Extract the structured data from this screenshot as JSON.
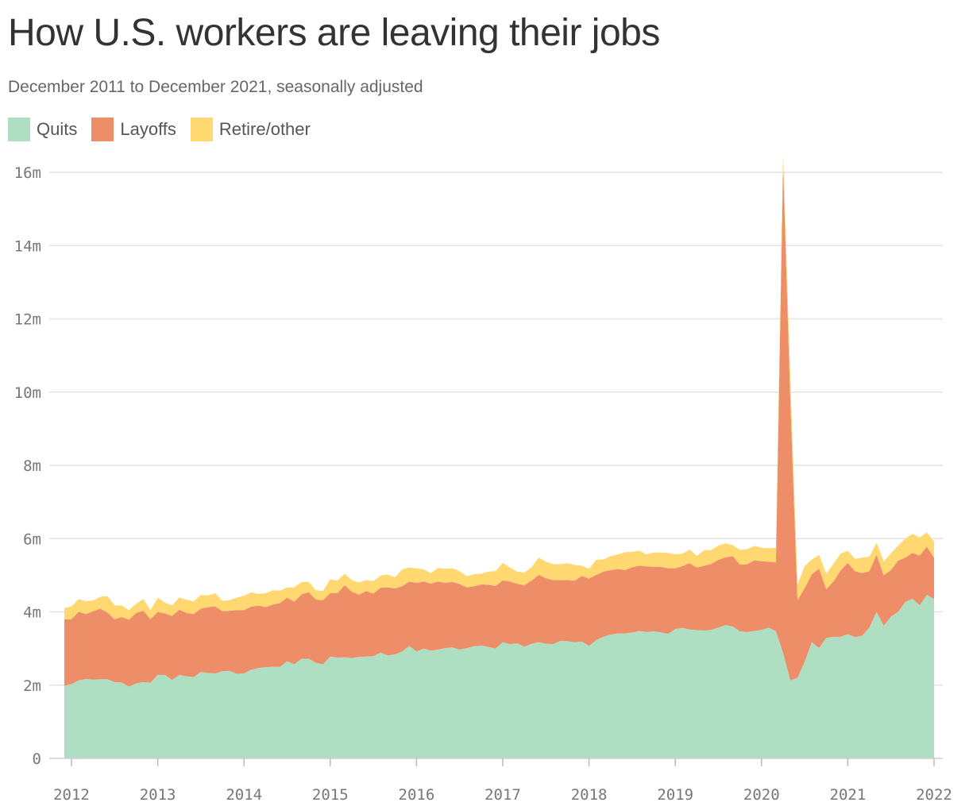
{
  "chart_data": {
    "type": "area",
    "stacked": true,
    "title": "How U.S. workers are leaving their jobs",
    "subtitle": "December 2011 to December 2021, seasonally adjusted",
    "xlabel": "",
    "ylabel": "",
    "x_start": "2011-12",
    "x_end": "2021-12",
    "x_ticks": [
      "2012",
      "2013",
      "2014",
      "2015",
      "2016",
      "2017",
      "2018",
      "2019",
      "2020",
      "2021",
      "2022"
    ],
    "ylim": [
      0,
      16000000
    ],
    "y_ticks": [
      {
        "value": 0,
        "label": "0"
      },
      {
        "value": 2000000,
        "label": "2m"
      },
      {
        "value": 4000000,
        "label": "4m"
      },
      {
        "value": 6000000,
        "label": "6m"
      },
      {
        "value": 8000000,
        "label": "8m"
      },
      {
        "value": 10000000,
        "label": "10m"
      },
      {
        "value": 12000000,
        "label": "12m"
      },
      {
        "value": 14000000,
        "label": "14m"
      },
      {
        "value": 16000000,
        "label": "16m"
      }
    ],
    "grid": true,
    "legend_position": "top-left",
    "series": [
      {
        "name": "Quits",
        "color": "#aedfc2",
        "values": [
          1.98,
          2.03,
          2.13,
          2.17,
          2.15,
          2.16,
          2.16,
          2.08,
          2.07,
          1.96,
          2.05,
          2.08,
          2.07,
          2.28,
          2.28,
          2.14,
          2.28,
          2.24,
          2.22,
          2.36,
          2.33,
          2.32,
          2.38,
          2.39,
          2.31,
          2.32,
          2.42,
          2.47,
          2.49,
          2.5,
          2.5,
          2.65,
          2.57,
          2.72,
          2.72,
          2.61,
          2.57,
          2.78,
          2.75,
          2.76,
          2.74,
          2.77,
          2.78,
          2.79,
          2.89,
          2.81,
          2.84,
          2.92,
          3.07,
          2.92,
          3.0,
          2.94,
          2.97,
          3.01,
          3.03,
          2.97,
          3.01,
          3.06,
          3.08,
          3.04,
          3.0,
          3.17,
          3.12,
          3.14,
          3.05,
          3.13,
          3.17,
          3.13,
          3.12,
          3.21,
          3.2,
          3.17,
          3.19,
          3.07,
          3.23,
          3.32,
          3.38,
          3.41,
          3.41,
          3.44,
          3.48,
          3.45,
          3.47,
          3.44,
          3.4,
          3.53,
          3.56,
          3.52,
          3.5,
          3.49,
          3.51,
          3.57,
          3.64,
          3.6,
          3.47,
          3.45,
          3.48,
          3.51,
          3.57,
          3.47,
          2.88,
          2.13,
          2.2,
          2.64,
          3.17,
          3.01,
          3.29,
          3.32,
          3.32,
          3.39,
          3.31,
          3.35,
          3.57,
          4.0,
          3.62,
          3.87,
          4.0,
          4.27,
          4.36,
          4.18,
          4.47,
          4.35
        ],
        "note": "millions"
      },
      {
        "name": "Layoffs",
        "color": "#ee8e68",
        "values": [
          1.82,
          1.77,
          1.87,
          1.77,
          1.87,
          1.93,
          1.82,
          1.72,
          1.79,
          1.83,
          1.92,
          1.95,
          1.73,
          1.72,
          1.68,
          1.75,
          1.78,
          1.73,
          1.72,
          1.73,
          1.8,
          1.83,
          1.64,
          1.64,
          1.74,
          1.73,
          1.72,
          1.7,
          1.64,
          1.7,
          1.74,
          1.74,
          1.71,
          1.76,
          1.82,
          1.73,
          1.75,
          1.73,
          1.76,
          1.97,
          1.81,
          1.7,
          1.79,
          1.71,
          1.77,
          1.86,
          1.8,
          1.78,
          1.76,
          1.87,
          1.83,
          1.83,
          1.86,
          1.78,
          1.79,
          1.79,
          1.66,
          1.64,
          1.67,
          1.7,
          1.71,
          1.69,
          1.71,
          1.63,
          1.68,
          1.72,
          1.84,
          1.79,
          1.75,
          1.66,
          1.67,
          1.68,
          1.79,
          1.84,
          1.78,
          1.78,
          1.76,
          1.76,
          1.73,
          1.78,
          1.78,
          1.79,
          1.76,
          1.79,
          1.79,
          1.66,
          1.69,
          1.81,
          1.71,
          1.77,
          1.8,
          1.85,
          1.85,
          1.92,
          1.82,
          1.85,
          1.93,
          1.87,
          1.8,
          1.88,
          13.33,
          7.66,
          2.12,
          2.01,
          1.86,
          2.17,
          1.33,
          1.51,
          1.81,
          1.95,
          1.8,
          1.71,
          1.54,
          1.56,
          1.38,
          1.27,
          1.4,
          1.21,
          1.25,
          1.36,
          1.31,
          1.13
        ],
        "note": "millions"
      },
      {
        "name": "Retire/other",
        "color": "#ffd872",
        "values": [
          0.3,
          0.35,
          0.35,
          0.35,
          0.29,
          0.32,
          0.45,
          0.38,
          0.31,
          0.26,
          0.25,
          0.32,
          0.25,
          0.39,
          0.29,
          0.29,
          0.33,
          0.36,
          0.35,
          0.37,
          0.32,
          0.36,
          0.28,
          0.29,
          0.34,
          0.39,
          0.39,
          0.32,
          0.38,
          0.39,
          0.34,
          0.28,
          0.39,
          0.33,
          0.28,
          0.25,
          0.25,
          0.38,
          0.34,
          0.31,
          0.32,
          0.33,
          0.3,
          0.34,
          0.33,
          0.35,
          0.3,
          0.46,
          0.38,
          0.4,
          0.33,
          0.29,
          0.37,
          0.39,
          0.37,
          0.35,
          0.3,
          0.33,
          0.29,
          0.36,
          0.4,
          0.48,
          0.38,
          0.33,
          0.34,
          0.37,
          0.47,
          0.45,
          0.43,
          0.43,
          0.46,
          0.43,
          0.28,
          0.27,
          0.41,
          0.33,
          0.38,
          0.4,
          0.49,
          0.42,
          0.41,
          0.33,
          0.39,
          0.39,
          0.42,
          0.38,
          0.34,
          0.37,
          0.32,
          0.42,
          0.38,
          0.39,
          0.38,
          0.3,
          0.4,
          0.41,
          0.39,
          0.37,
          0.37,
          0.4,
          0.31,
          0.61,
          0.43,
          0.6,
          0.4,
          0.38,
          0.42,
          0.48,
          0.46,
          0.33,
          0.34,
          0.42,
          0.4,
          0.33,
          0.38,
          0.46,
          0.41,
          0.52,
          0.52,
          0.49,
          0.39,
          0.44
        ],
        "note": "millions"
      }
    ]
  }
}
